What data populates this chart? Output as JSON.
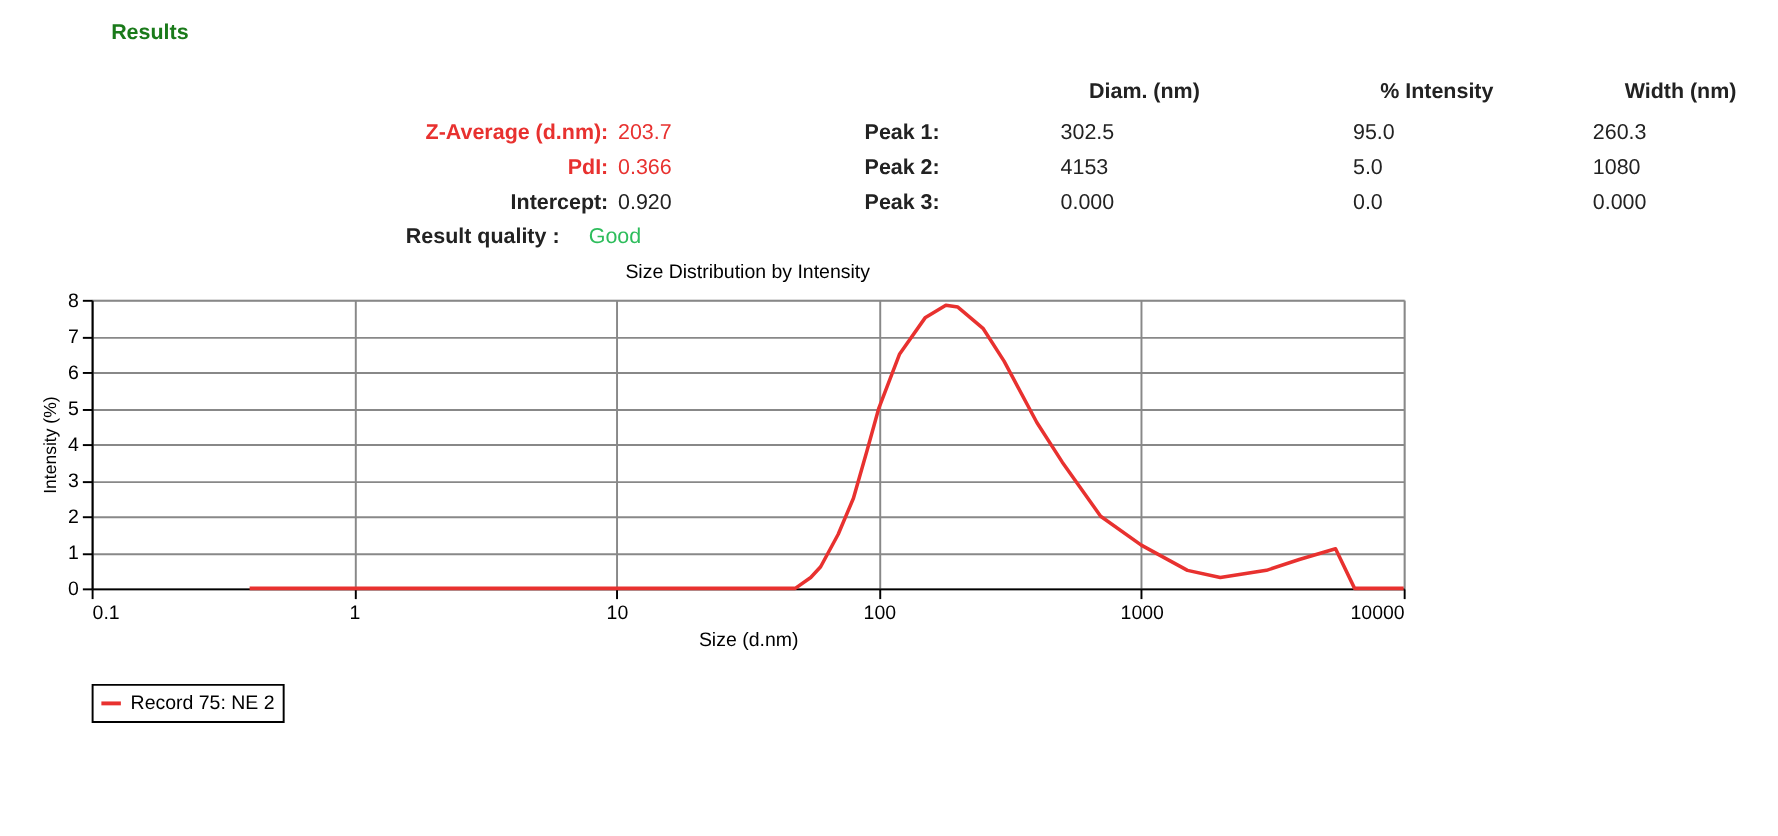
{
  "chart_data": {
    "type": "line",
    "title": "Size Distribution by Intensity",
    "xlabel": "Size (d.nm)",
    "ylabel": "Intensity (%)",
    "annotations": [
      "Results",
      "Diam. (nm)",
      "% Intensity",
      "Width (nm)",
      "Z-Average (d.nm):",
      "203.7",
      "Peak 1:",
      "302.5",
      "95.0",
      "260.3",
      "PdI:",
      "0.366",
      "Peak 2:",
      "4153",
      "5.0",
      "1080",
      "Intercept:",
      "0.920",
      "Peak 3:",
      "0.000",
      "0.0",
      "0.000",
      "Result quality :",
      "Good"
    ],
    "log": "x",
    "xlim": [
      0.1,
      10000
    ],
    "xticks": [
      0.1,
      1,
      10,
      100,
      1000,
      10000
    ],
    "ylim": [
      0,
      8
    ],
    "yticks": [
      0,
      1,
      2,
      3,
      4,
      5,
      6,
      7,
      8
    ],
    "grid": true,
    "legend": "bottom",
    "marker": "none",
    "line_style": "solid",
    "x": [
      0.4,
      1,
      10,
      48,
      55,
      60,
      70,
      80,
      90,
      100,
      120,
      150,
      180,
      200,
      250,
      300,
      400,
      500,
      700,
      1000,
      1500,
      2000,
      3000,
      4000,
      5500,
      6500,
      10000
    ],
    "series": [
      {
        "name": "Record 75: NE 2",
        "color": "#e8312f",
        "values": [
          0,
          0,
          0,
          0,
          0.3,
          0.6,
          1.5,
          2.5,
          3.8,
          5.0,
          6.5,
          7.5,
          7.85,
          7.8,
          7.2,
          6.3,
          4.6,
          3.5,
          2.0,
          1.2,
          0.5,
          0.3,
          0.5,
          0.8,
          1.1,
          0,
          0
        ]
      }
    ]
  }
}
